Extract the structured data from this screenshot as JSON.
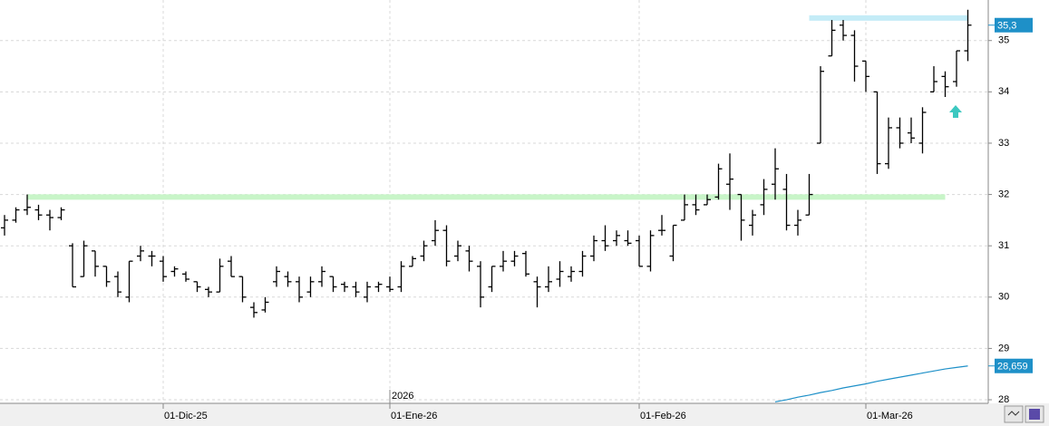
{
  "chart_data": {
    "type": "ohlc",
    "categories": [
      null,
      null,
      null,
      null,
      null,
      null,
      null,
      null,
      null,
      null,
      null,
      null,
      null,
      null,
      "01-Dic-25",
      null,
      null,
      null,
      null,
      null,
      null,
      null,
      null,
      null,
      null,
      null,
      null,
      null,
      null,
      null,
      null,
      null,
      null,
      null,
      "01-Ene-26",
      null,
      null,
      null,
      null,
      null,
      null,
      null,
      null,
      null,
      null,
      null,
      null,
      null,
      null,
      null,
      null,
      null,
      null,
      null,
      null,
      null,
      "01-Feb-26",
      null,
      null,
      null,
      null,
      null,
      null,
      null,
      null,
      null,
      null,
      null,
      null,
      null,
      null,
      null,
      null,
      null,
      null,
      null,
      "01-Mar-26",
      null,
      null,
      null,
      null,
      null,
      null,
      null,
      null,
      null
    ],
    "year_label": "2026",
    "year_index": 34,
    "open": [
      31.35,
      31.5,
      31.7,
      31.7,
      31.6,
      31.55,
      31.0,
      30.4,
      30.9,
      30.6,
      30.4,
      30.0,
      30.8,
      30.8,
      30.7,
      30.5,
      30.45,
      30.3,
      30.15,
      30.1,
      30.7,
      30.4,
      29.8,
      29.75,
      30.3,
      30.4,
      30.3,
      30.1,
      30.3,
      30.4,
      30.25,
      30.2,
      30.0,
      30.2,
      30.2,
      30.2,
      30.6,
      30.8,
      31.1,
      31.3,
      30.8,
      30.9,
      30.6,
      30.2,
      30.6,
      30.7,
      30.85,
      30.3,
      30.2,
      30.35,
      30.4,
      30.5,
      30.8,
      31.1,
      31.1,
      31.1,
      31.1,
      30.6,
      31.3,
      30.8,
      31.5,
      31.8,
      31.8,
      31.95,
      32.2,
      32.0,
      31.4,
      31.8,
      32.2,
      32.1,
      31.4,
      31.6,
      33.0,
      34.7,
      35.3,
      35.1,
      34.6,
      34.0,
      32.6,
      33.3,
      33.2,
      33.0,
      34.0,
      34.3,
      34.2,
      34.8
    ],
    "high": [
      31.6,
      31.75,
      32.0,
      31.8,
      31.7,
      31.75,
      31.05,
      31.1,
      30.9,
      30.6,
      30.5,
      30.7,
      31.0,
      30.9,
      30.8,
      30.6,
      30.5,
      30.3,
      30.2,
      30.75,
      30.8,
      30.4,
      29.9,
      30.0,
      30.6,
      30.5,
      30.4,
      30.4,
      30.6,
      30.4,
      30.3,
      30.3,
      30.3,
      30.3,
      30.4,
      30.7,
      30.8,
      31.1,
      31.5,
      31.4,
      31.1,
      31.0,
      30.7,
      30.6,
      30.9,
      30.9,
      30.9,
      30.4,
      30.6,
      30.7,
      30.6,
      30.9,
      31.2,
      31.4,
      31.3,
      31.3,
      31.2,
      31.3,
      31.6,
      31.4,
      32.0,
      32.0,
      32.0,
      32.6,
      32.8,
      32.0,
      31.7,
      32.3,
      32.9,
      32.4,
      31.7,
      32.4,
      34.5,
      35.4,
      35.4,
      35.2,
      34.6,
      34.0,
      33.5,
      33.5,
      33.5,
      33.7,
      34.5,
      34.4,
      34.8,
      35.6
    ],
    "low": [
      31.2,
      31.45,
      31.6,
      31.5,
      31.3,
      31.5,
      30.2,
      30.4,
      30.4,
      30.2,
      30.0,
      29.9,
      30.7,
      30.6,
      30.3,
      30.4,
      30.3,
      30.1,
      30.0,
      30.1,
      30.4,
      29.9,
      29.6,
      29.7,
      30.2,
      30.2,
      29.9,
      30.0,
      30.2,
      30.1,
      30.1,
      30.0,
      29.9,
      30.1,
      30.1,
      30.1,
      30.6,
      30.7,
      31.0,
      30.6,
      30.7,
      30.5,
      29.8,
      30.1,
      30.5,
      30.6,
      30.4,
      29.8,
      30.1,
      30.2,
      30.3,
      30.4,
      30.7,
      30.9,
      31.0,
      31.0,
      30.6,
      30.5,
      31.2,
      30.7,
      31.5,
      31.6,
      31.8,
      31.9,
      31.7,
      31.1,
      31.2,
      31.6,
      31.9,
      31.3,
      31.2,
      31.6,
      33.0,
      34.7,
      35.0,
      34.2,
      34.0,
      32.4,
      32.5,
      32.9,
      33.0,
      32.8,
      34.0,
      33.9,
      34.1,
      34.6
    ],
    "close": [
      31.5,
      31.7,
      31.75,
      31.6,
      31.55,
      31.7,
      30.2,
      31.0,
      30.6,
      30.3,
      30.1,
      30.7,
      30.9,
      30.8,
      30.4,
      30.55,
      30.35,
      30.2,
      30.1,
      30.6,
      30.4,
      30.0,
      29.7,
      29.9,
      30.5,
      30.3,
      30.0,
      30.3,
      30.5,
      30.2,
      30.2,
      30.1,
      30.2,
      30.25,
      30.15,
      30.6,
      30.75,
      31.0,
      31.3,
      30.7,
      31.0,
      30.7,
      30.0,
      30.6,
      30.7,
      30.8,
      30.45,
      30.2,
      30.3,
      30.5,
      30.5,
      30.8,
      31.1,
      31.0,
      31.2,
      31.05,
      30.6,
      31.2,
      31.3,
      31.4,
      31.8,
      31.7,
      31.9,
      32.5,
      32.3,
      31.5,
      31.6,
      32.1,
      32.5,
      31.4,
      31.5,
      32.0,
      34.4,
      35.2,
      35.1,
      34.5,
      34.3,
      32.6,
      33.3,
      33.0,
      33.1,
      33.6,
      34.2,
      34.1,
      34.8,
      35.3
    ],
    "bar_color": "#000000",
    "ma": {
      "color": "#1e90c8",
      "values": [
        null,
        null,
        null,
        null,
        null,
        null,
        null,
        null,
        null,
        null,
        null,
        null,
        null,
        null,
        null,
        null,
        null,
        null,
        null,
        null,
        null,
        null,
        null,
        null,
        null,
        null,
        null,
        null,
        null,
        null,
        null,
        null,
        null,
        null,
        null,
        null,
        null,
        null,
        null,
        null,
        null,
        null,
        null,
        null,
        null,
        null,
        null,
        null,
        null,
        null,
        null,
        null,
        null,
        null,
        null,
        null,
        null,
        null,
        null,
        null,
        null,
        null,
        null,
        null,
        null,
        null,
        null,
        null,
        27.96,
        28.0,
        28.05,
        28.09,
        28.14,
        28.18,
        28.23,
        28.27,
        28.31,
        28.36,
        28.4,
        28.44,
        28.48,
        28.52,
        28.56,
        28.6,
        28.63,
        28.659
      ],
      "last": {
        "value": 28.659,
        "label": "28,659"
      }
    },
    "last_price": {
      "value": 35.3,
      "label": "35,3"
    },
    "levels": [
      {
        "value": 31.95,
        "from": 2,
        "to": 83,
        "color": "#c8f5c8"
      },
      {
        "value": 35.44,
        "from": 71,
        "to": 85,
        "color": "#c4ecf7"
      }
    ],
    "ylim": [
      27.93,
      35.79
    ],
    "yticks": [
      28,
      29,
      30,
      31,
      32,
      33,
      34,
      35
    ],
    "grid": true
  }
}
